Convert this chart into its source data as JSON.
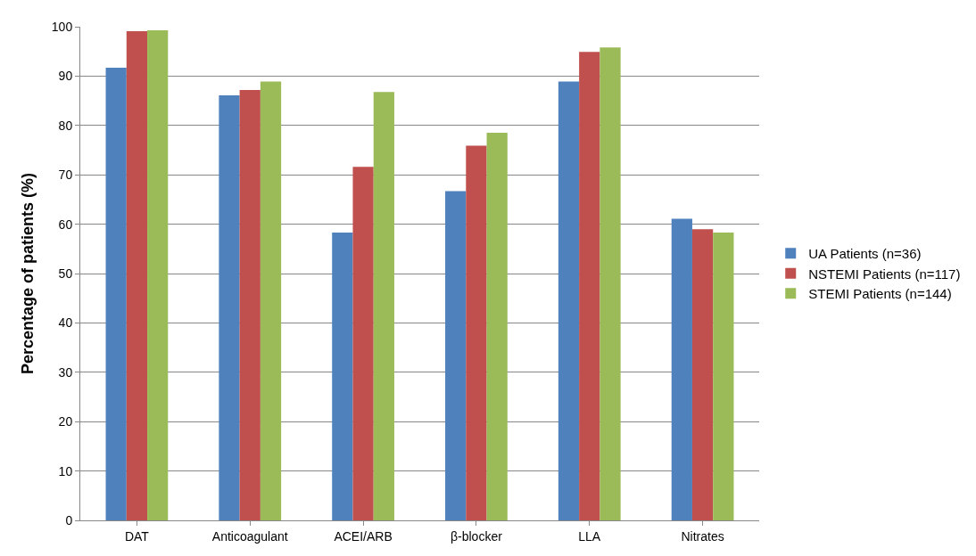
{
  "chart_data": {
    "type": "bar",
    "ylabel": "Percentage of patients (%)",
    "categories": [
      "DAT",
      "Anticoagulant",
      "ACEI/ARB",
      "β-blocker",
      "LLA",
      "Nitrates"
    ],
    "series": [
      {
        "name": "UA Patients (n=36)",
        "color": "#4f81bd",
        "values": [
          91.7,
          86.1,
          58.3,
          66.7,
          88.9,
          61.1
        ]
      },
      {
        "name": "NSTEMI Patients (n=117)",
        "color": "#c0504d",
        "values": [
          99.1,
          87.2,
          71.6,
          75.9,
          94.9,
          59.0
        ]
      },
      {
        "name": "STEMI Patients (n=144)",
        "color": "#9bbb59",
        "values": [
          99.3,
          88.9,
          86.8,
          78.5,
          95.8,
          58.3
        ]
      }
    ],
    "ylim": [
      0,
      100
    ],
    "yticks": [
      0,
      10,
      20,
      30,
      40,
      50,
      60,
      70,
      80,
      90,
      100
    ],
    "grid": "y",
    "legend": "right"
  }
}
